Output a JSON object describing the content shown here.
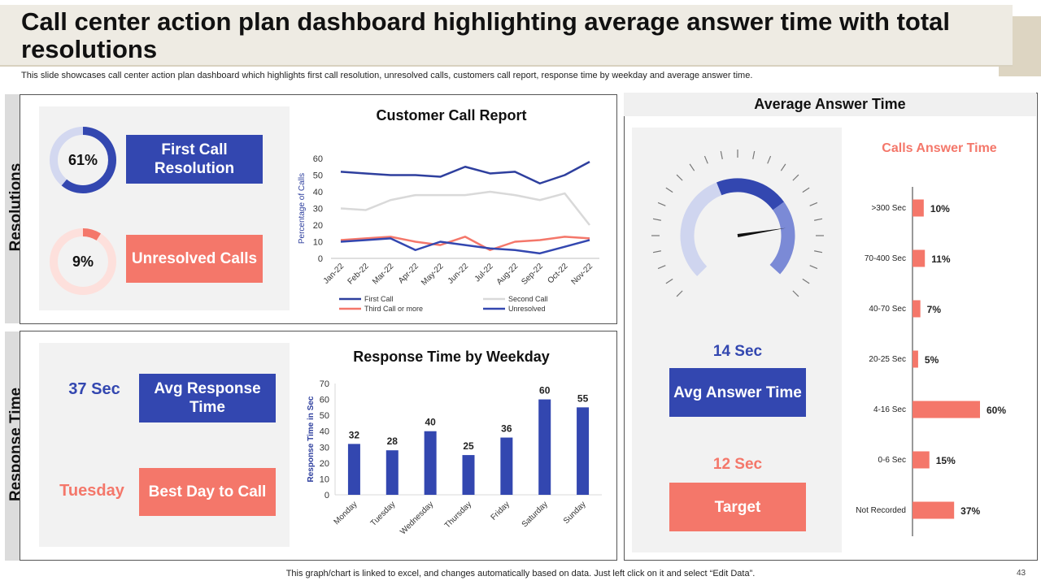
{
  "header": {
    "title": "Call center action plan dashboard highlighting average answer time with total resolutions",
    "subtitle": "This slide showcases call center action plan dashboard which highlights first call resolution, unresolved calls, customers call report, response time by weekday and average answer time."
  },
  "colors": {
    "blue": "#3347b0",
    "salmon": "#f4776a",
    "light_blue": "#d3d8f0",
    "light_salmon": "#fde0dc",
    "gray": "#c8c8c8"
  },
  "resolutions": {
    "side_label": "Resolutions",
    "first_call": {
      "percent_text": "61%",
      "value": 61,
      "label": "First Call Resolution"
    },
    "unresolved": {
      "percent_text": "9%",
      "value": 9,
      "label": "Unresolved Calls"
    }
  },
  "response": {
    "side_label": "Response Time",
    "avg": {
      "value": "37 Sec",
      "label": "Avg Response Time"
    },
    "best_day": {
      "value": "Tuesday",
      "label": "Best Day to Call"
    }
  },
  "answer": {
    "title": "Average Answer Time",
    "gauge_fraction": 0.8,
    "avg": {
      "value": "14 Sec",
      "label": "Avg Answer Time"
    },
    "target": {
      "value": "12 Sec",
      "label": "Target"
    }
  },
  "chart_data": [
    {
      "type": "line",
      "title": "Customer Call Report",
      "ylabel": "Percentage of Calls",
      "xlabel": "",
      "ylim": [
        0,
        60
      ],
      "yticks": [
        0,
        10,
        20,
        30,
        40,
        50,
        60
      ],
      "categories": [
        "Jan-22",
        "Feb-22",
        "Mar-22",
        "Apr-22",
        "May-22",
        "Jun-22",
        "Jul-22",
        "Aug-22",
        "Sep-22",
        "Oct-22",
        "Nov-22"
      ],
      "series": [
        {
          "name": "First Call",
          "color": "#2e3f9e",
          "values": [
            52,
            51,
            50,
            50,
            49,
            55,
            51,
            52,
            45,
            50,
            58
          ]
        },
        {
          "name": "Second Call",
          "color": "#d9d9d9",
          "values": [
            30,
            29,
            35,
            38,
            38,
            38,
            40,
            38,
            35,
            39,
            20
          ]
        },
        {
          "name": "Third Call or more",
          "color": "#f4776a",
          "values": [
            11,
            12,
            13,
            10,
            8,
            13,
            5,
            10,
            11,
            13,
            12
          ]
        },
        {
          "name": "Unresolved",
          "color": "#3347b0",
          "values": [
            10,
            11,
            12,
            5,
            10,
            8,
            6,
            5,
            3,
            7,
            11
          ]
        }
      ]
    },
    {
      "type": "bar",
      "title": "Response Time by Weekday",
      "ylabel": "Response Time in Sec",
      "xlabel": "",
      "ylim": [
        0,
        70
      ],
      "yticks": [
        0,
        10,
        20,
        30,
        40,
        50,
        60,
        70
      ],
      "categories": [
        "Monday",
        "Tuesday",
        "Wednesday",
        "Thursday",
        "Friday",
        "Saturday",
        "Sunday"
      ],
      "values": [
        32,
        28,
        40,
        25,
        36,
        60,
        55
      ]
    },
    {
      "type": "bar",
      "orientation": "horizontal",
      "title": "Calls Answer Time",
      "categories": [
        ">300 Sec",
        "70-400 Sec",
        "40-70 Sec",
        "20-25 Sec",
        "4-16 Sec",
        "0-6 Sec",
        "Not Recorded"
      ],
      "values": [
        10,
        11,
        7,
        5,
        60,
        15,
        37
      ],
      "value_labels": [
        "10%",
        "11%",
        "7%",
        "5%",
        "60%",
        "15%",
        "37%"
      ]
    }
  ],
  "footer": {
    "note": "This graph/chart is linked to excel, and changes automatically based on data. Just left click on it and select “Edit Data”.",
    "page": "43"
  }
}
